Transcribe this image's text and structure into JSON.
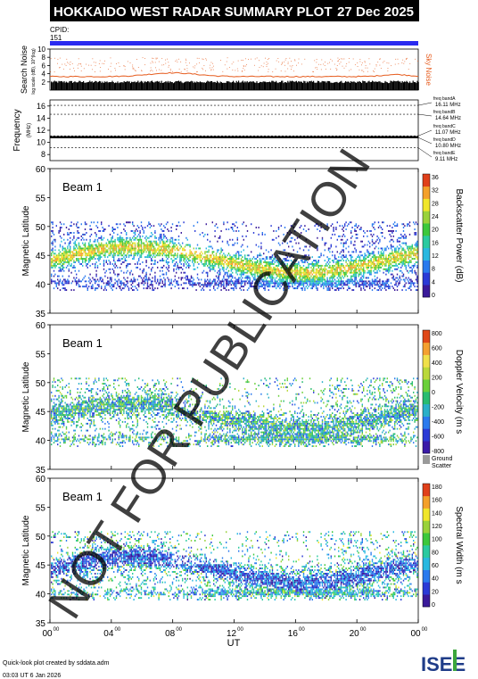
{
  "header": {
    "title": "HOKKAIDO WEST RADAR SUMMARY PLOT",
    "date": "27 Dec 2025"
  },
  "cpid": {
    "label": "CPID:",
    "value": "151"
  },
  "noise_panel": {
    "ylabel": "Search Noise",
    "ylabel_sub": "log scale (dB), 10^(log)",
    "right_label": "Sky Noise",
    "ticks": [
      2,
      4,
      6,
      8,
      10
    ]
  },
  "freq_panel": {
    "ylabel": "Frequency",
    "unit": "(MHz)",
    "ticks": [
      8,
      10,
      12,
      14,
      16
    ],
    "bands": [
      {
        "label": "freq bandA",
        "value": "16.11 MHz",
        "y": 16.11
      },
      {
        "label": "freq bandB",
        "value": "14.64 MHz",
        "y": 14.64
      },
      {
        "label": "freq bandC",
        "value": "11.07 MHz",
        "y": 11.07
      },
      {
        "label": "freq bandD",
        "value": "10.80 MHz",
        "y": 10.8
      },
      {
        "label": "freq bandE",
        "value": "9.11 MHz",
        "y": 9.11
      }
    ]
  },
  "panels": [
    {
      "beam": "Beam  1",
      "ylabel": "Magnetic Latitude",
      "cbar_label": "Backscatter Power (dB)",
      "cbar_ticks": [
        "36",
        "32",
        "28",
        "24",
        "20",
        "16",
        "12",
        "8",
        "4",
        "0"
      ]
    },
    {
      "beam": "Beam  1",
      "ylabel": "Magnetic Latitude",
      "cbar_label": "Doppler Velocity (m s",
      "cbar_ticks": [
        "800",
        "600",
        "400",
        "200",
        "0",
        "-200",
        "-400",
        "-600",
        "-800"
      ],
      "ground": "Ground",
      "scatter": "Scatter"
    },
    {
      "beam": "Beam  1",
      "ylabel": "Magnetic Latitude",
      "cbar_label": "Spectral Width (m s",
      "cbar_ticks": [
        "180",
        "160",
        "140",
        "120",
        "100",
        "80",
        "60",
        "40",
        "20",
        "0"
      ]
    }
  ],
  "chart_data": {
    "type": "heatmap",
    "xlabel": "UT",
    "x_ticks": [
      "00",
      "04",
      "08",
      "12",
      "16",
      "20",
      "00"
    ],
    "x_tick_sup": "00",
    "xlim": [
      0,
      24
    ],
    "lat_ticks": [
      35,
      40,
      45,
      50,
      55,
      60
    ],
    "ylim": [
      35,
      60
    ],
    "noise_ylim": [
      0,
      10
    ],
    "freq_ylim": [
      7,
      17
    ]
  },
  "footer": {
    "credit": "Quick-look plot created by sddata.adm",
    "timestamp": "03:03 UT  6 Jan 2026",
    "logo": "ISEE"
  },
  "watermark": "NOT FOR PUBLICATION",
  "colors": {
    "header_bg": "#000000",
    "cpid_bar": "#2a2af0",
    "noise": "#e65c1e"
  }
}
